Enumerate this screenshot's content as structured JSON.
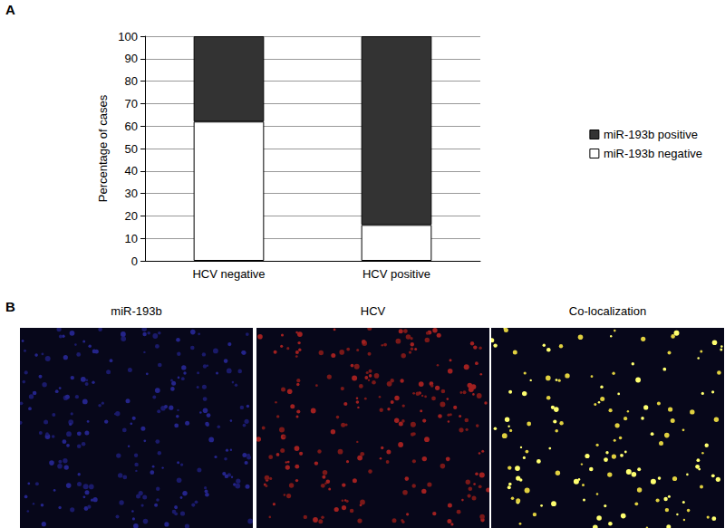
{
  "chart_data": {
    "type": "bar",
    "stacked": true,
    "categories": [
      "HCV negative",
      "HCV positive"
    ],
    "series": [
      {
        "name": "miR-193b negative",
        "color": "#ffffff",
        "values": [
          62,
          16
        ]
      },
      {
        "name": "miR-193b positive",
        "color": "#333333",
        "values": [
          38,
          84
        ]
      }
    ],
    "ylabel": "Percentage of cases",
    "ylim": [
      0,
      100
    ],
    "yticks": [
      0,
      10,
      20,
      30,
      40,
      50,
      60,
      70,
      80,
      90,
      100
    ],
    "grid": true,
    "legend": "right"
  },
  "panel_labels": [
    "A",
    "B"
  ],
  "image_titles": [
    "miR-193b",
    "HCV",
    "Co-localization"
  ]
}
